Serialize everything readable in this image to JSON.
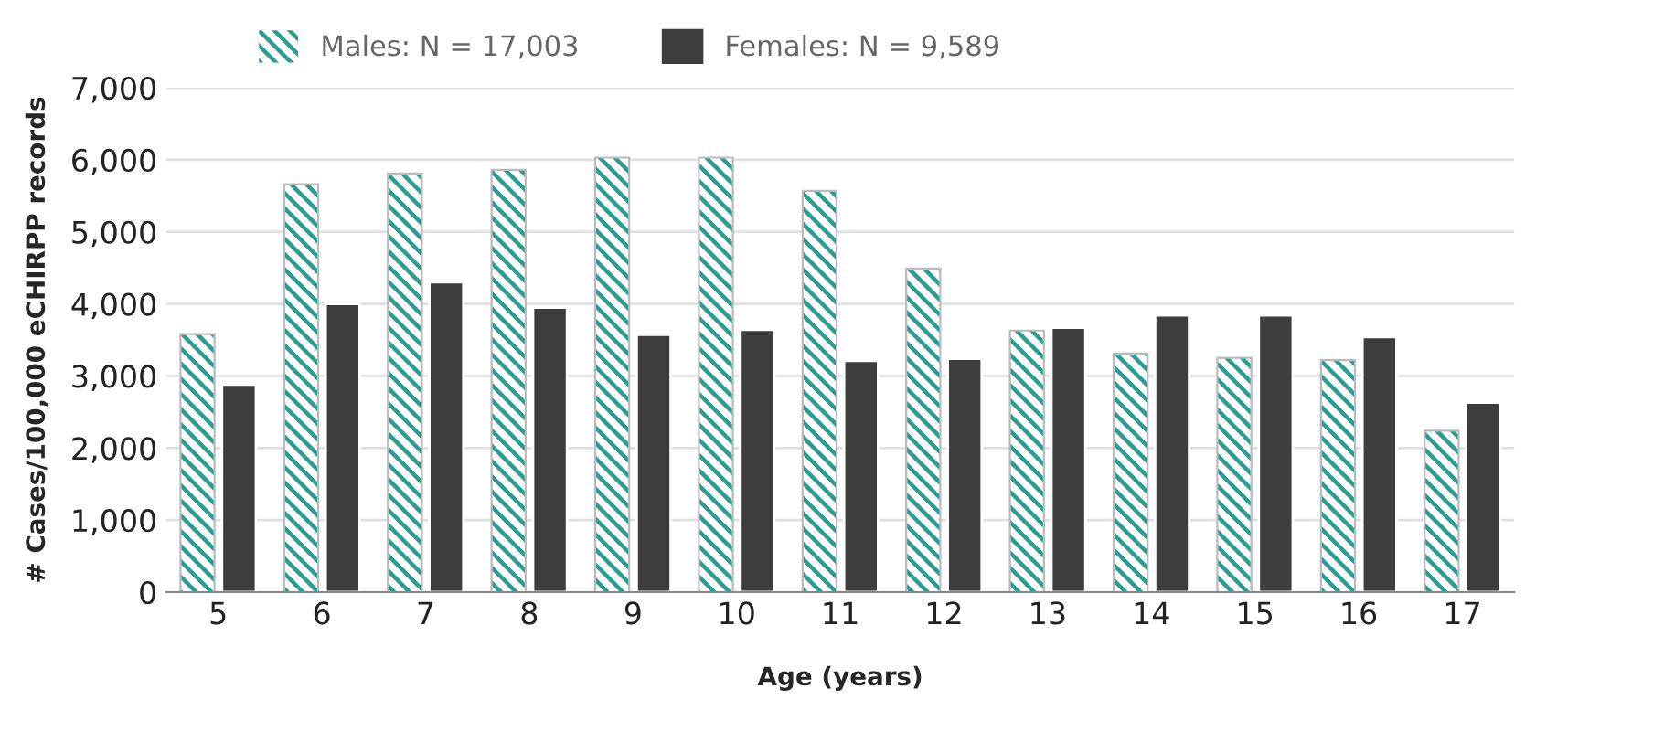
{
  "chart_data": {
    "type": "bar",
    "xlabel": "Age (years)",
    "ylabel": "# Cases/100,000 eCHIRPP records",
    "categories": [
      "5",
      "6",
      "7",
      "8",
      "9",
      "10",
      "11",
      "12",
      "13",
      "14",
      "15",
      "16",
      "17"
    ],
    "series": [
      {
        "name": "Males: N = 17,003",
        "color": "#2a9d8f",
        "values": [
          3580,
          5660,
          5810,
          5860,
          6030,
          6030,
          5570,
          4490,
          3630,
          3310,
          3250,
          3220,
          2240
        ]
      },
      {
        "name": "Females: N = 9,589",
        "color": "#3d3d3d",
        "values": [
          2880,
          4000,
          4300,
          3950,
          3570,
          3640,
          3210,
          3240,
          3670,
          3840,
          3840,
          3540,
          2630
        ]
      }
    ],
    "ylim": [
      0,
      7000
    ],
    "yticks": [
      {
        "value": 0,
        "label": "0"
      },
      {
        "value": 1000,
        "label": "1,000"
      },
      {
        "value": 2000,
        "label": "2,000"
      },
      {
        "value": 3000,
        "label": "3,000"
      },
      {
        "value": 4000,
        "label": "4,000"
      },
      {
        "value": 5000,
        "label": "5,000"
      },
      {
        "value": 6000,
        "label": "6,000"
      },
      {
        "value": 7000,
        "label": "7,000"
      }
    ],
    "grid": "y",
    "legend": "top"
  }
}
